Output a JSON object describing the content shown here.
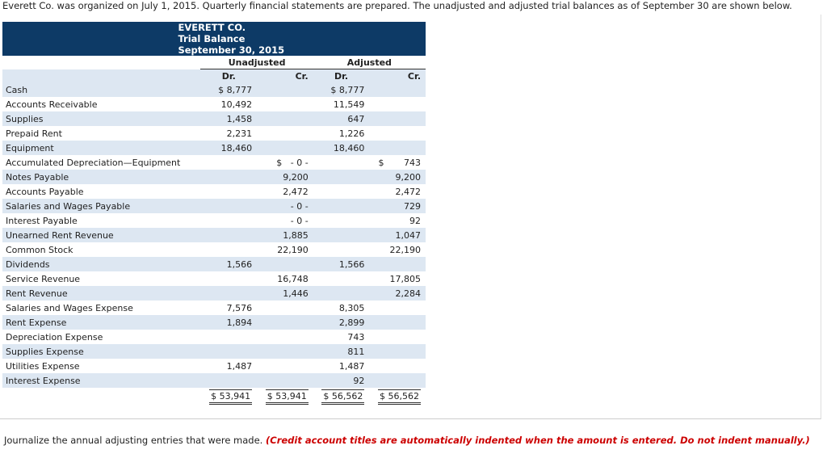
{
  "intro": "Everett Co. was organized on July 1, 2015. Quarterly financial statements are prepared. The unadjusted and adjusted trial balances as of September 30 are shown below.",
  "table": {
    "title": [
      "EVERETT CO.",
      "Trial Balance",
      "September 30, 2015"
    ],
    "groups": [
      "Unadjusted",
      "Adjusted"
    ],
    "subheads": [
      "Dr.",
      "Cr.",
      "Dr.",
      "Cr."
    ],
    "rows": [
      [
        "Cash",
        "$ 8,777",
        null,
        "$ 8,777",
        null
      ],
      [
        "Accounts Receivable",
        "10,492",
        null,
        "11,549",
        null
      ],
      [
        "Supplies",
        "1,458",
        null,
        "647",
        null
      ],
      [
        "Prepaid Rent",
        "2,231",
        null,
        "1,226",
        null
      ],
      [
        "Equipment",
        "18,460",
        null,
        "18,460",
        null
      ],
      [
        "Accumulated Depreciation—Equipment",
        null,
        "$   - 0 -",
        null,
        "$       743"
      ],
      [
        "Notes Payable",
        null,
        "9,200",
        null,
        "9,200"
      ],
      [
        "Accounts Payable",
        null,
        "2,472",
        null,
        "2,472"
      ],
      [
        "Salaries and Wages Payable",
        null,
        "- 0 -",
        null,
        "729"
      ],
      [
        "Interest Payable",
        null,
        "- 0 -",
        null,
        "92"
      ],
      [
        "Unearned Rent Revenue",
        null,
        "1,885",
        null,
        "1,047"
      ],
      [
        "Common Stock",
        null,
        "22,190",
        null,
        "22,190"
      ],
      [
        "Dividends",
        "1,566",
        null,
        "1,566",
        null
      ],
      [
        "Service Revenue",
        null,
        "16,748",
        null,
        "17,805"
      ],
      [
        "Rent Revenue",
        null,
        "1,446",
        null,
        "2,284"
      ],
      [
        "Salaries and Wages Expense",
        "7,576",
        null,
        "8,305",
        null
      ],
      [
        "Rent Expense",
        "1,894",
        null,
        "2,899",
        null
      ],
      [
        "Depreciation Expense",
        null,
        null,
        "743",
        null
      ],
      [
        "Supplies Expense",
        null,
        null,
        "811",
        null
      ],
      [
        "Utilities Expense",
        "1,487",
        null,
        "1,487",
        null
      ],
      [
        "Interest Expense",
        null,
        null,
        "92",
        null
      ]
    ],
    "totals": [
      "$ 53,941",
      "$ 53,941",
      "$ 56,562",
      "$ 56,562"
    ]
  },
  "instruction": {
    "text": "Journalize the annual adjusting entries that were made.",
    "note": "(Credit account titles are automatically indented when the amount is entered. Do not indent manually.)"
  }
}
